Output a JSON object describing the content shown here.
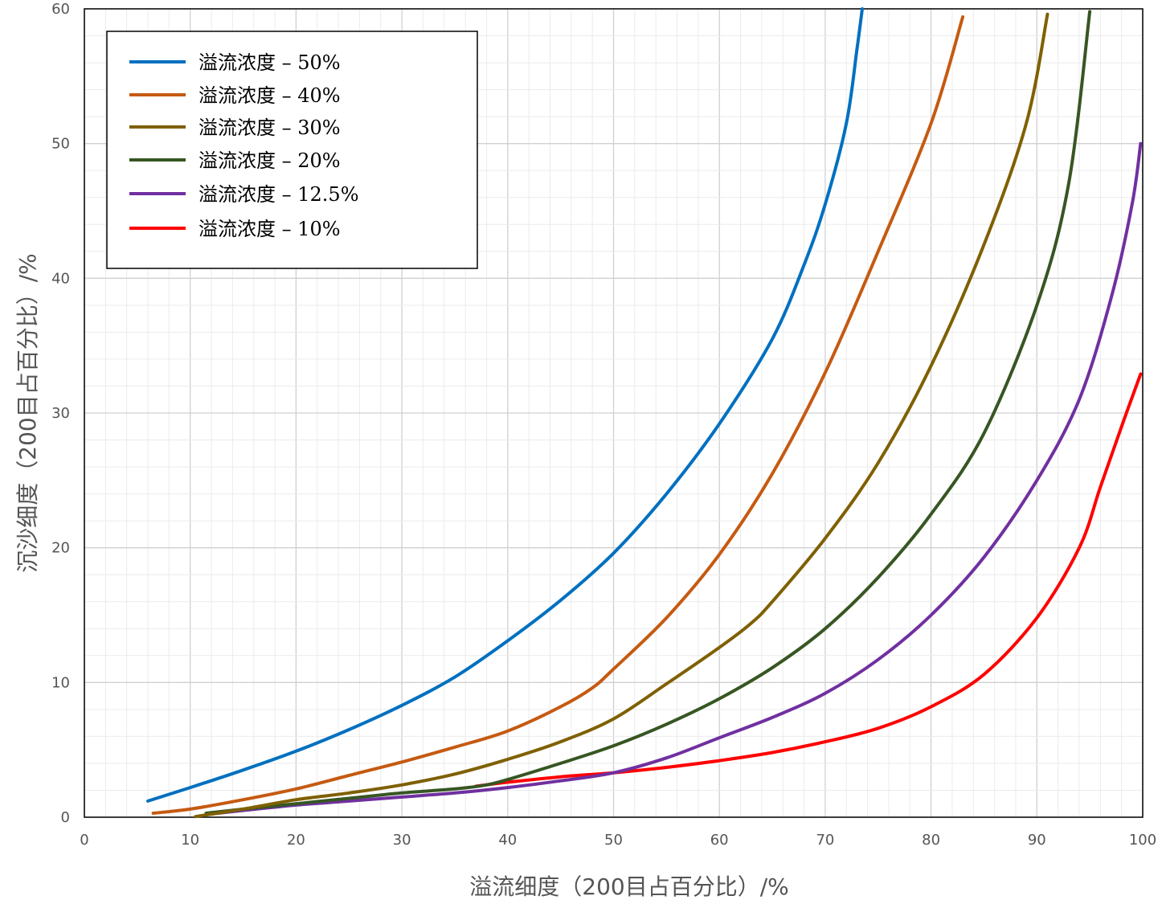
{
  "chart_data": {
    "type": "line",
    "xlabel": "溢流细度（200目占百分比）/%",
    "ylabel": "沉沙细度（200目占百分比）/%",
    "xlim": [
      0,
      100
    ],
    "ylim": [
      0,
      60
    ],
    "x_ticks": [
      0,
      10,
      20,
      30,
      40,
      50,
      60,
      70,
      80,
      90,
      100
    ],
    "y_ticks": [
      0,
      10,
      20,
      30,
      40,
      50,
      60
    ],
    "grid": true,
    "legend_position": "top-left",
    "series": [
      {
        "name": "溢流浓度 – 50%",
        "color": "#0070C0",
        "points": [
          [
            6,
            1.2
          ],
          [
            10,
            2.2
          ],
          [
            15,
            3.5
          ],
          [
            20,
            4.9
          ],
          [
            25,
            6.5
          ],
          [
            30,
            8.3
          ],
          [
            35,
            10.4
          ],
          [
            40,
            13.1
          ],
          [
            45,
            16.1
          ],
          [
            50,
            19.6
          ],
          [
            55,
            24.0
          ],
          [
            60,
            29.2
          ],
          [
            65,
            35.5
          ],
          [
            68,
            41.0
          ],
          [
            70,
            45.5
          ],
          [
            72,
            51.5
          ],
          [
            73,
            57.0
          ],
          [
            73.5,
            60.0
          ]
        ]
      },
      {
        "name": "溢流浓度 – 40%",
        "color": "#C55A11",
        "points": [
          [
            6.5,
            0.3
          ],
          [
            10,
            0.6
          ],
          [
            15,
            1.3
          ],
          [
            20,
            2.1
          ],
          [
            25,
            3.1
          ],
          [
            30,
            4.1
          ],
          [
            35,
            5.2
          ],
          [
            40,
            6.4
          ],
          [
            45,
            8.2
          ],
          [
            48,
            9.6
          ],
          [
            50,
            11.0
          ],
          [
            55,
            14.8
          ],
          [
            60,
            19.5
          ],
          [
            65,
            25.5
          ],
          [
            70,
            33.0
          ],
          [
            75,
            42.0
          ],
          [
            80,
            51.5
          ],
          [
            83,
            59.4
          ]
        ]
      },
      {
        "name": "溢流浓度 – 30%",
        "color": "#7F6000",
        "points": [
          [
            10.5,
            0.05
          ],
          [
            15,
            0.6
          ],
          [
            20,
            1.3
          ],
          [
            25,
            1.8
          ],
          [
            30,
            2.4
          ],
          [
            35,
            3.2
          ],
          [
            40,
            4.3
          ],
          [
            45,
            5.6
          ],
          [
            50,
            7.3
          ],
          [
            55,
            9.9
          ],
          [
            60,
            12.6
          ],
          [
            63,
            14.4
          ],
          [
            65,
            16.0
          ],
          [
            70,
            20.7
          ],
          [
            75,
            26.3
          ],
          [
            80,
            33.5
          ],
          [
            85,
            42.5
          ],
          [
            89,
            51.5
          ],
          [
            91,
            59.6
          ]
        ]
      },
      {
        "name": "溢流浓度 – 20%",
        "color": "#375623",
        "points": [
          [
            11.5,
            0.3
          ],
          [
            15,
            0.6
          ],
          [
            20,
            1.0
          ],
          [
            25,
            1.4
          ],
          [
            30,
            1.8
          ],
          [
            35,
            2.1
          ],
          [
            38,
            2.4
          ],
          [
            40,
            2.8
          ],
          [
            45,
            4.0
          ],
          [
            50,
            5.3
          ],
          [
            55,
            6.9
          ],
          [
            60,
            8.8
          ],
          [
            65,
            11.1
          ],
          [
            70,
            14.0
          ],
          [
            75,
            17.8
          ],
          [
            80,
            22.5
          ],
          [
            85,
            28.5
          ],
          [
            90,
            38.0
          ],
          [
            93,
            47.0
          ],
          [
            95,
            59.8
          ]
        ]
      },
      {
        "name": "溢流浓度 – 12.5%",
        "color": "#7030A0",
        "points": [
          [
            11.5,
            0.2
          ],
          [
            15,
            0.5
          ],
          [
            20,
            0.9
          ],
          [
            25,
            1.2
          ],
          [
            30,
            1.5
          ],
          [
            35,
            1.8
          ],
          [
            40,
            2.2
          ],
          [
            45,
            2.7
          ],
          [
            50,
            3.3
          ],
          [
            55,
            4.4
          ],
          [
            60,
            5.9
          ],
          [
            65,
            7.4
          ],
          [
            70,
            9.2
          ],
          [
            75,
            11.7
          ],
          [
            80,
            15.0
          ],
          [
            85,
            19.3
          ],
          [
            90,
            25.0
          ],
          [
            94,
            31.0
          ],
          [
            97,
            38.5
          ],
          [
            99,
            45.5
          ],
          [
            99.8,
            50.0
          ]
        ]
      },
      {
        "name": "溢流浓度 – 10%",
        "color": "#FF0000",
        "points": [
          [
            37,
            2.3
          ],
          [
            40,
            2.6
          ],
          [
            45,
            3.0
          ],
          [
            50,
            3.3
          ],
          [
            55,
            3.7
          ],
          [
            60,
            4.2
          ],
          [
            65,
            4.8
          ],
          [
            70,
            5.6
          ],
          [
            75,
            6.6
          ],
          [
            80,
            8.2
          ],
          [
            85,
            10.6
          ],
          [
            90,
            14.8
          ],
          [
            94,
            20.0
          ],
          [
            96,
            24.5
          ],
          [
            98,
            29.0
          ],
          [
            99.8,
            32.9
          ]
        ]
      }
    ]
  }
}
